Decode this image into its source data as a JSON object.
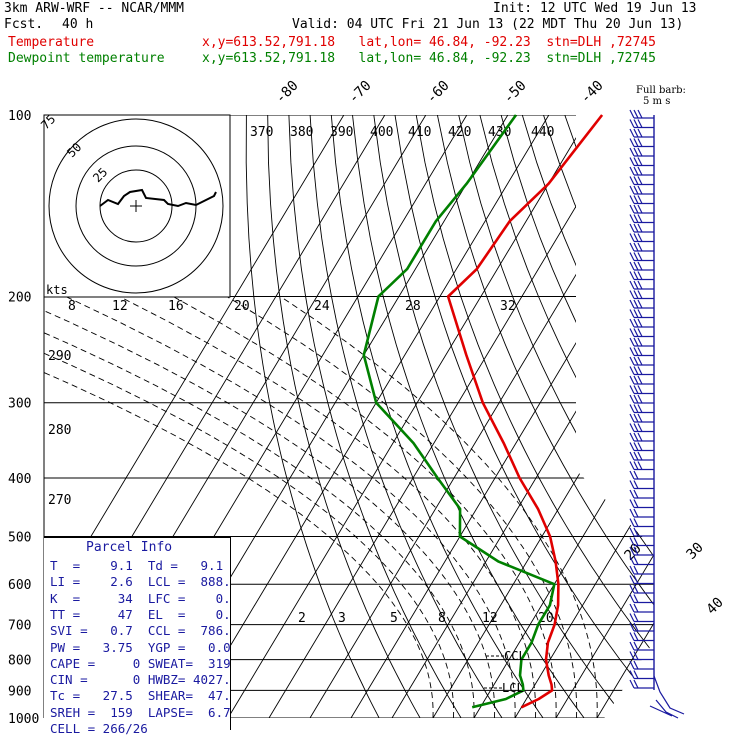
{
  "header": {
    "model": "3km ARW-WRF -- NCAR/MMM",
    "init": "Init: 12 UTC Wed 19 Jun 13",
    "fcst_label": "Fcst.",
    "fcst_value": "40 h",
    "valid": "Valid: 04 UTC Fri 21 Jun 13 (22 MDT Thu 20 Jun 13)",
    "temp_label": "Temperature",
    "temp_info": "x,y=613.52,791.18   lat,lon= 46.84, -92.23  stn=DLH ,72745",
    "dew_label": "Dewpoint temperature",
    "dew_info": "x,y=613.52,791.18   lat,lon= 46.84, -92.23  stn=DLH ,72745",
    "barb_label_1": "Full barb:",
    "barb_label_2": "5 m s"
  },
  "colors": {
    "temperature": "#e00000",
    "dewpoint": "#008000",
    "parcel_text": "#1a1aa0"
  },
  "chart_data": {
    "type": "line",
    "pressure_levels": [
      100,
      200,
      300,
      400,
      500,
      600,
      700,
      800,
      900,
      1000
    ],
    "isotherm_labels": [
      -80,
      -70,
      -60,
      -50,
      -40,
      -30,
      -20,
      -10,
      0,
      10,
      20,
      30,
      40
    ],
    "theta_labels": [
      370,
      380,
      390,
      400,
      410,
      420,
      430,
      440
    ],
    "theta_left_labels": [
      290,
      280,
      270
    ],
    "mixing_ratio_top": [
      8,
      12,
      16,
      20,
      24,
      28,
      32
    ],
    "mixing_ratio_low": [
      2,
      3,
      5,
      8,
      12,
      20
    ],
    "hodograph_rings": [
      "25",
      "50",
      "75"
    ],
    "hodo_unit": "kts",
    "lcl_label": "LCL",
    "ccl_label": "CCL",
    "series": [
      {
        "name": "Temperature",
        "p": [
          100,
          130,
          150,
          180,
          200,
          250,
          300,
          350,
          400,
          450,
          500,
          550,
          600,
          650,
          700,
          750,
          800,
          850,
          880,
          900,
          930,
          960
        ],
        "t": [
          -57,
          -60,
          -64,
          -65,
          -68,
          -55,
          -44,
          -33,
          -24,
          -15,
          -8,
          -3,
          1,
          4,
          6,
          7,
          9,
          12,
          14,
          15,
          13,
          10
        ]
      },
      {
        "name": "Dewpoint temperature",
        "p": [
          100,
          130,
          150,
          180,
          200,
          250,
          300,
          350,
          400,
          450,
          500,
          550,
          600,
          650,
          700,
          750,
          800,
          850,
          880,
          900,
          930,
          960
        ],
        "t": [
          -78,
          -80,
          -82,
          -82,
          -85,
          -80,
          -70,
          -55,
          -44,
          -34,
          -30,
          -17,
          0,
          2,
          2,
          3,
          3,
          5,
          7,
          8,
          5,
          -2
        ]
      }
    ]
  },
  "parcel": {
    "title": "Parcel Info",
    "rows": [
      "T  =    9.1  Td =   9.1",
      "LI =    2.6  LCL =  888.",
      "K  =     34  LFC =    0.",
      "TT =     47  EL  =    0.",
      "SVI =   0.7  CCL =  786.",
      "PW =   3.75  YGP =   0.0",
      "CAPE =     0 SWEAT=  319",
      "CIN =      0 HWBZ= 4027.",
      "Tc =   27.5  SHEAR=  47.",
      "SREH =  159  LAPSE=  6.7",
      "CELL = 266/26"
    ]
  }
}
